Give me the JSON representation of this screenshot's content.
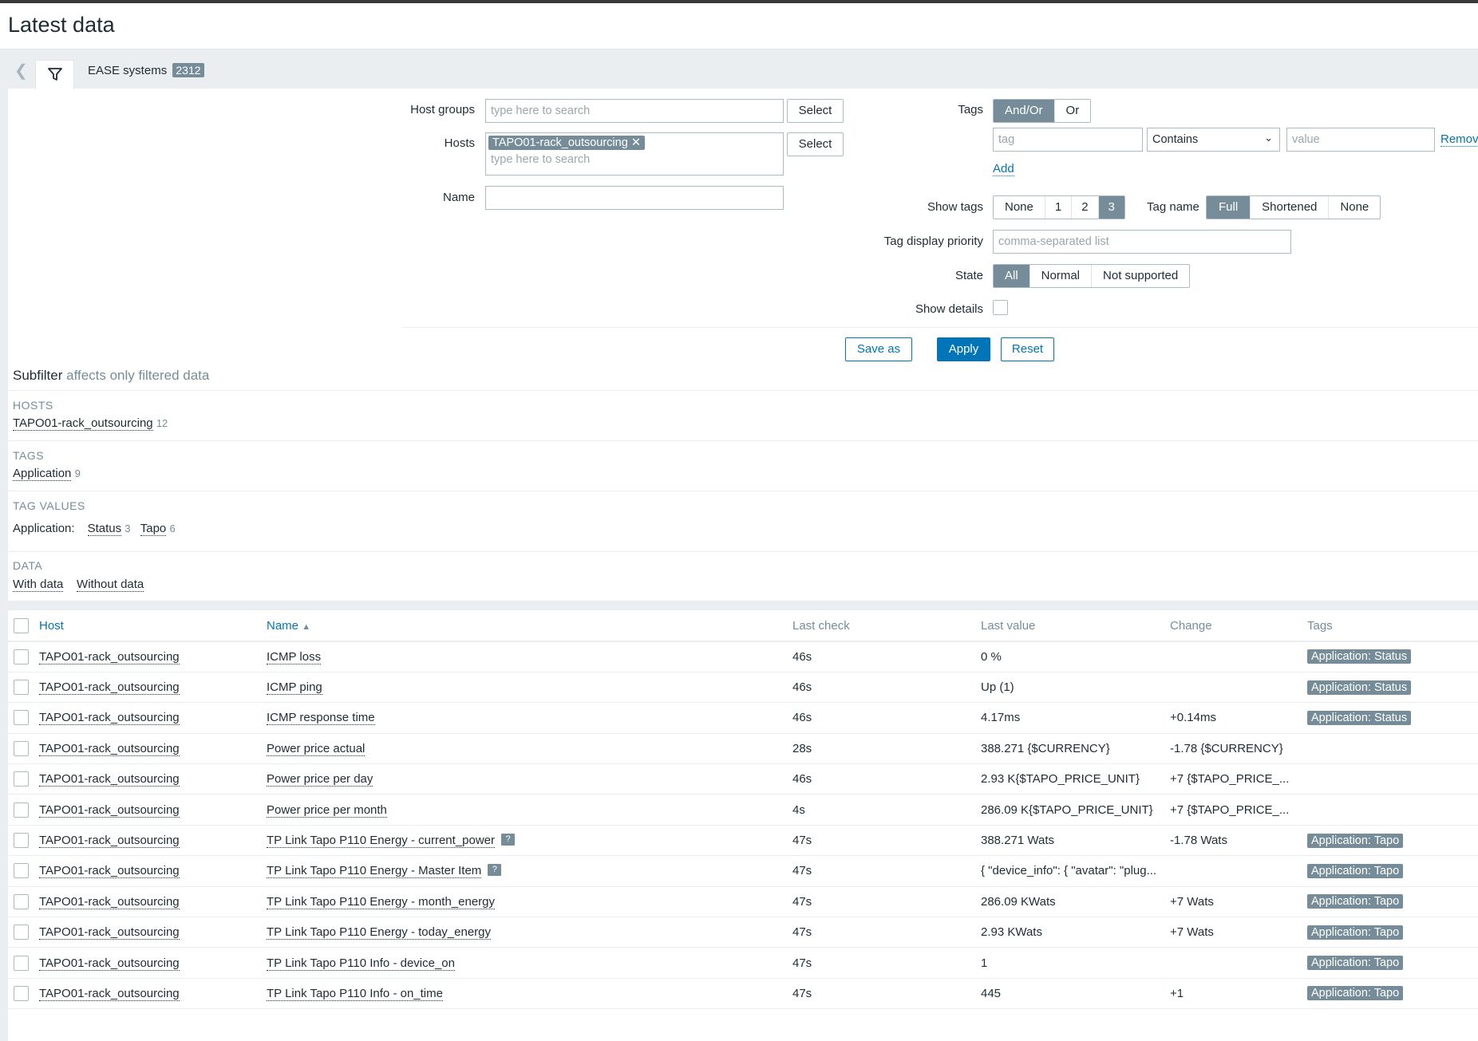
{
  "page": {
    "title": "Latest data"
  },
  "tabs": {
    "filter_name": "EASE systems",
    "count": "2312"
  },
  "filter": {
    "host_groups_label": "Host groups",
    "host_groups_placeholder": "type here to search",
    "select_label": "Select",
    "hosts_label": "Hosts",
    "host_chip": "TAPO01-rack_outsourcing",
    "hosts_placeholder": "type here to search",
    "name_label": "Name",
    "tags_label": "Tags",
    "tags_op": [
      "And/Or",
      "Or"
    ],
    "tag_placeholder": "tag",
    "operator": "Contains",
    "value_placeholder": "value",
    "remove_label": "Remove",
    "add_label": "Add",
    "show_tags_label": "Show tags",
    "show_tags": [
      "None",
      "1",
      "2",
      "3"
    ],
    "tag_name_label": "Tag name",
    "tag_name": [
      "Full",
      "Shortened",
      "None"
    ],
    "tag_priority_label": "Tag display priority",
    "tag_priority_placeholder": "comma-separated list",
    "state_label": "State",
    "state": [
      "All",
      "Normal",
      "Not supported"
    ],
    "show_details_label": "Show details",
    "save_as": "Save as",
    "apply": "Apply",
    "reset": "Reset"
  },
  "subfilter": {
    "title": "Subfilter",
    "subtitle": "affects only filtered data",
    "hosts_head": "HOSTS",
    "host": "TAPO01-rack_outsourcing",
    "host_count": "12",
    "tags_head": "TAGS",
    "tag": "Application",
    "tag_count": "9",
    "tagvalues_head": "TAG VALUES",
    "tv_label": "Application:",
    "tv1": "Status",
    "tv1_count": "3",
    "tv2": "Tapo",
    "tv2_count": "6",
    "data_head": "DATA",
    "with_data": "With data",
    "without_data": "Without data"
  },
  "table": {
    "headers": {
      "host": "Host",
      "name": "Name",
      "last_check": "Last check",
      "last_value": "Last value",
      "change": "Change",
      "tags": "Tags"
    },
    "rows": [
      {
        "host": "TAPO01-rack_outsourcing",
        "name": "ICMP loss",
        "help": false,
        "last_check": "46s",
        "last_value": "0 %",
        "change": "",
        "tag": "Application: Status"
      },
      {
        "host": "TAPO01-rack_outsourcing",
        "name": "ICMP ping",
        "help": false,
        "last_check": "46s",
        "last_value": "Up (1)",
        "change": "",
        "tag": "Application: Status"
      },
      {
        "host": "TAPO01-rack_outsourcing",
        "name": "ICMP response time",
        "help": false,
        "last_check": "46s",
        "last_value": "4.17ms",
        "change": "+0.14ms",
        "tag": "Application: Status"
      },
      {
        "host": "TAPO01-rack_outsourcing",
        "name": "Power price actual",
        "help": false,
        "last_check": "28s",
        "last_value": "388.271 {$CURRENCY}",
        "change": "-1.78 {$CURRENCY}",
        "tag": ""
      },
      {
        "host": "TAPO01-rack_outsourcing",
        "name": "Power price per day",
        "help": false,
        "last_check": "46s",
        "last_value": "2.93 K{$TAPO_PRICE_UNIT}",
        "change": "+7 {$TAPO_PRICE_...",
        "tag": ""
      },
      {
        "host": "TAPO01-rack_outsourcing",
        "name": "Power price per month",
        "help": false,
        "last_check": "4s",
        "last_value": "286.09 K{$TAPO_PRICE_UNIT}",
        "change": "+7 {$TAPO_PRICE_...",
        "tag": ""
      },
      {
        "host": "TAPO01-rack_outsourcing",
        "name": "TP Link Tapo P110 Energy - current_power",
        "help": true,
        "last_check": "47s",
        "last_value": "388.271 Wats",
        "change": "-1.78 Wats",
        "tag": "Application: Tapo"
      },
      {
        "host": "TAPO01-rack_outsourcing",
        "name": "TP Link Tapo P110 Energy - Master Item",
        "help": true,
        "last_check": "47s",
        "last_value": "{ \"device_info\": { \"avatar\": \"plug...",
        "change": "",
        "tag": "Application: Tapo"
      },
      {
        "host": "TAPO01-rack_outsourcing",
        "name": "TP Link Tapo P110 Energy - month_energy",
        "help": false,
        "last_check": "47s",
        "last_value": "286.09 KWats",
        "change": "+7 Wats",
        "tag": "Application: Tapo"
      },
      {
        "host": "TAPO01-rack_outsourcing",
        "name": "TP Link Tapo P110 Energy - today_energy",
        "help": false,
        "last_check": "47s",
        "last_value": "2.93 KWats",
        "change": "+7 Wats",
        "tag": "Application: Tapo"
      },
      {
        "host": "TAPO01-rack_outsourcing",
        "name": "TP Link Tapo P110 Info - device_on",
        "help": false,
        "last_check": "47s",
        "last_value": "1",
        "change": "",
        "tag": "Application: Tapo"
      },
      {
        "host": "TAPO01-rack_outsourcing",
        "name": "TP Link Tapo P110 Info - on_time",
        "help": false,
        "last_check": "47s",
        "last_value": "445",
        "change": "+1",
        "tag": "Application: Tapo"
      }
    ]
  },
  "colors": {
    "accent": "#0275b8",
    "chip": "#768d99",
    "panel": "#ebeef0"
  }
}
